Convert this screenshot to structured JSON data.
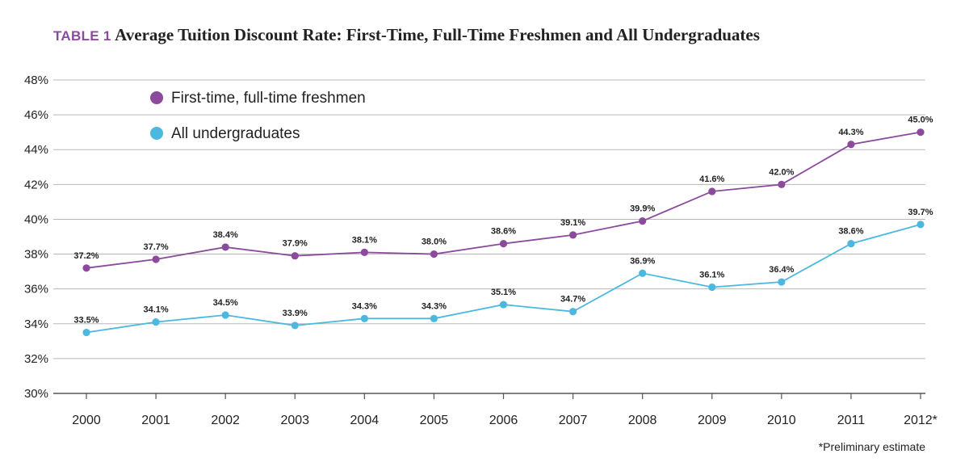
{
  "title": {
    "tag": "TABLE 1",
    "text": "Average Tuition Discount Rate: First-Time, Full-Time Freshmen and All Undergraduates"
  },
  "footnote": "*Preliminary estimate",
  "colors": {
    "freshmen": "#8b4a9c",
    "undergrad": "#4cb8e0",
    "grid": "#b8b8b8",
    "axis": "#555555"
  },
  "chart_data": {
    "type": "line",
    "categories": [
      "2000",
      "2001",
      "2002",
      "2003",
      "2004",
      "2005",
      "2006",
      "2007",
      "2008",
      "2009",
      "2010",
      "2011",
      "2012*"
    ],
    "ylim": [
      30,
      48
    ],
    "yticks": [
      "30%",
      "32%",
      "34%",
      "36%",
      "38%",
      "40%",
      "42%",
      "44%",
      "46%",
      "48%"
    ],
    "ytick_values": [
      30,
      32,
      34,
      36,
      38,
      40,
      42,
      44,
      46,
      48
    ],
    "grid": true,
    "legend_position": "top-left",
    "series": [
      {
        "name": "First-time, full-time freshmen",
        "color": "#8b4a9c",
        "values": [
          37.2,
          37.7,
          38.4,
          37.9,
          38.1,
          38.0,
          38.6,
          39.1,
          39.9,
          41.6,
          42.0,
          44.3,
          45.0
        ],
        "labels": [
          "37.2%",
          "37.7%",
          "38.4%",
          "37.9%",
          "38.1%",
          "38.0%",
          "38.6%",
          "39.1%",
          "39.9%",
          "41.6%",
          "42.0%",
          "44.3%",
          "45.0%"
        ]
      },
      {
        "name": "All undergraduates",
        "color": "#4cb8e0",
        "values": [
          33.5,
          34.1,
          34.5,
          33.9,
          34.3,
          34.3,
          35.1,
          34.7,
          36.9,
          36.1,
          36.4,
          38.6,
          39.7
        ],
        "labels": [
          "33.5%",
          "34.1%",
          "34.5%",
          "33.9%",
          "34.3%",
          "34.3%",
          "35.1%",
          "34.7%",
          "36.9%",
          "36.1%",
          "36.4%",
          "38.6%",
          "39.7%"
        ]
      }
    ]
  }
}
